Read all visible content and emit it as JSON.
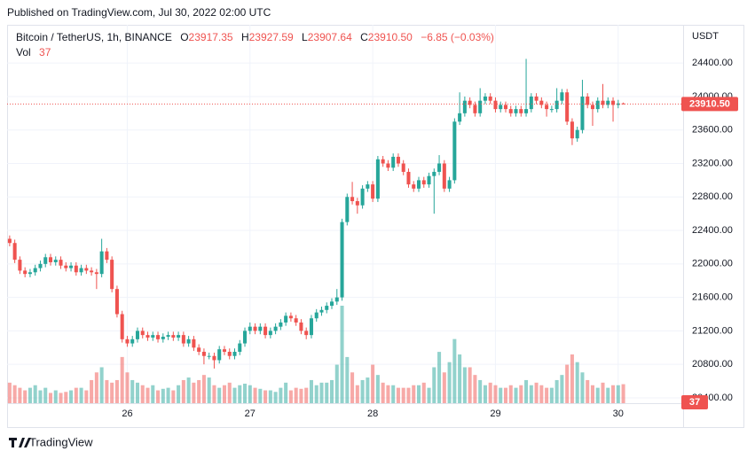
{
  "published": "Published on TradingView.com, Jul 30, 2022 02:00 UTC",
  "brand": "TradingView",
  "chart_data": {
    "type": "candlestick",
    "title": "Bitcoin / TetherUS, 1h, BINANCE",
    "currency": "USDT",
    "ohlc_letters": [
      "O",
      "H",
      "L",
      "C"
    ],
    "last_close_label": "23910.50",
    "change_label": "−6.85 (−0.03%)",
    "volume_name": "Vol",
    "up_color": "#26a69a",
    "down_color": "#ef5350",
    "grid": true,
    "xlim": [
      -0.5,
      131.7
    ],
    "xticks": [
      {
        "value": 23,
        "label": "26"
      },
      {
        "value": 47,
        "label": "27"
      },
      {
        "value": 71,
        "label": "28"
      },
      {
        "value": 95,
        "label": "29"
      },
      {
        "value": 119,
        "label": "30"
      }
    ],
    "ylim": [
      20336,
      24857
    ],
    "yticks": [
      {
        "value": 20400,
        "label": "20400.00"
      },
      {
        "value": 20800,
        "label": "20800.00"
      },
      {
        "value": 21200,
        "label": "21200.00"
      },
      {
        "value": 21600,
        "label": "21600.00"
      },
      {
        "value": 22000,
        "label": "22000.00"
      },
      {
        "value": 22400,
        "label": "22400.00"
      },
      {
        "value": 22800,
        "label": "22800.00"
      },
      {
        "value": 23200,
        "label": "23200.00"
      },
      {
        "value": 23600,
        "label": "23600.00"
      },
      {
        "value": 24000,
        "label": "24000.00"
      },
      {
        "value": 24400,
        "label": "24400.00"
      }
    ],
    "open": [
      22300,
      22250,
      22050,
      21920,
      21880,
      21900,
      21950,
      22000,
      22080,
      22020,
      22050,
      21980,
      21950,
      21980,
      21900,
      21950,
      21920,
      21900,
      21880,
      22150,
      22050,
      21700,
      21400,
      21100,
      21050,
      21100,
      21200,
      21150,
      21120,
      21150,
      21100,
      21130,
      21150,
      21120,
      21150,
      21050,
      21100,
      21000,
      20950,
      20900,
      20900,
      20850,
      20980,
      20950,
      20900,
      20950,
      21050,
      21200,
      21250,
      21200,
      21250,
      21150,
      21200,
      21250,
      21300,
      21380,
      21350,
      21300,
      21200,
      21150,
      21350,
      21420,
      21450,
      21500,
      21550,
      21600,
      22500,
      22800,
      22750,
      22700,
      22900,
      22950,
      22780,
      23250,
      23200,
      23150,
      23280,
      23200,
      23100,
      22950,
      22900,
      23000,
      22950,
      23050,
      23100,
      23200,
      22900,
      23000,
      23700,
      23800,
      23950,
      23900,
      23800,
      23950,
      24000,
      23950,
      23850,
      23900,
      23850,
      23800,
      23850,
      23800,
      23850,
      24000,
      23950,
      23900,
      23850,
      23850,
      23950,
      24050,
      23700,
      23500,
      23600,
      24000,
      23900,
      23850,
      23950,
      23900,
      23950,
      23900,
      23917.35
    ],
    "high": [
      22340,
      22290,
      22090,
      21960,
      21940,
      21990,
      22040,
      22120,
      22120,
      22090,
      22090,
      22020,
      22020,
      22020,
      21990,
      21990,
      21960,
      21940,
      22300,
      22190,
      22090,
      21740,
      21440,
      21140,
      21140,
      21240,
      21240,
      21190,
      21190,
      21190,
      21170,
      21190,
      21190,
      21190,
      21190,
      21140,
      21140,
      21040,
      20990,
      20940,
      20940,
      21020,
      21020,
      20990,
      20990,
      21090,
      21240,
      21300,
      21290,
      21290,
      21290,
      21240,
      21290,
      21340,
      21420,
      21420,
      21390,
      21340,
      21240,
      21390,
      21460,
      21490,
      21540,
      21590,
      21700,
      22540,
      22840,
      22980,
      22790,
      22940,
      22990,
      22990,
      23290,
      23290,
      23240,
      23320,
      23320,
      23240,
      23140,
      22990,
      23040,
      23040,
      23090,
      23140,
      23300,
      23240,
      23040,
      23740,
      24050,
      24000,
      23990,
      23940,
      24100,
      24040,
      24040,
      23990,
      23940,
      23940,
      23890,
      23890,
      23890,
      24450,
      24040,
      24040,
      23990,
      23940,
      23890,
      24100,
      24090,
      24090,
      23740,
      23640,
      24200,
      24040,
      23940,
      23990,
      24150,
      23990,
      23990,
      23960,
      23927.59
    ],
    "low": [
      22210,
      22010,
      21880,
      21840,
      21840,
      21860,
      21910,
      21960,
      21980,
      21980,
      21940,
      21910,
      21910,
      21860,
      21860,
      21880,
      21860,
      21700,
      21840,
      22010,
      21660,
      21360,
      21060,
      21010,
      21010,
      21060,
      21110,
      21080,
      21080,
      21060,
      21060,
      21090,
      21080,
      21080,
      21010,
      21010,
      20960,
      20910,
      20800,
      20860,
      20750,
      20810,
      20910,
      20860,
      20860,
      20910,
      21010,
      21160,
      21160,
      21160,
      21110,
      21110,
      21160,
      21210,
      21260,
      21310,
      21260,
      21160,
      21100,
      21110,
      21310,
      21380,
      21410,
      21460,
      21510,
      21560,
      22460,
      22710,
      22600,
      22660,
      22860,
      22740,
      22740,
      23160,
      23110,
      23110,
      23160,
      23060,
      22910,
      22860,
      22860,
      22910,
      22910,
      22600,
      23060,
      22860,
      22860,
      22960,
      23660,
      23760,
      23860,
      23760,
      23760,
      23910,
      23910,
      23810,
      23810,
      23810,
      23760,
      23760,
      23760,
      23760,
      23810,
      23910,
      23860,
      23760,
      23810,
      23810,
      23910,
      23660,
      23420,
      23460,
      23560,
      23860,
      23650,
      23810,
      23860,
      23860,
      23700,
      23860,
      23907.64
    ],
    "close": [
      22250,
      22050,
      21920,
      21880,
      21900,
      21950,
      22000,
      22080,
      22020,
      22050,
      21980,
      21950,
      21980,
      21900,
      21950,
      21920,
      21900,
      21880,
      22150,
      22050,
      21700,
      21400,
      21100,
      21050,
      21100,
      21200,
      21150,
      21120,
      21150,
      21100,
      21130,
      21150,
      21120,
      21150,
      21050,
      21100,
      21000,
      20950,
      20900,
      20900,
      20850,
      20980,
      20950,
      20900,
      20950,
      21050,
      21200,
      21250,
      21200,
      21250,
      21150,
      21200,
      21250,
      21300,
      21380,
      21350,
      21300,
      21200,
      21150,
      21350,
      21420,
      21450,
      21500,
      21550,
      21600,
      22500,
      22800,
      22750,
      22700,
      22900,
      22950,
      22780,
      23250,
      23200,
      23150,
      23280,
      23200,
      23100,
      22950,
      22900,
      23000,
      22950,
      23050,
      23100,
      23200,
      22900,
      23000,
      23700,
      23800,
      23950,
      23900,
      23800,
      23950,
      24000,
      23950,
      23850,
      23900,
      23850,
      23800,
      23850,
      23800,
      23850,
      24000,
      23950,
      23900,
      23850,
      23850,
      23950,
      24050,
      23700,
      23500,
      23600,
      24000,
      23900,
      23850,
      23950,
      23900,
      23950,
      23900,
      23917.35,
      23910.5
    ],
    "volume": [
      40,
      35,
      30,
      25,
      30,
      35,
      25,
      30,
      20,
      25,
      20,
      22,
      25,
      30,
      30,
      25,
      45,
      60,
      70,
      45,
      40,
      45,
      90,
      60,
      45,
      40,
      35,
      30,
      35,
      25,
      28,
      30,
      25,
      35,
      45,
      50,
      40,
      45,
      55,
      50,
      35,
      30,
      35,
      40,
      30,
      35,
      38,
      35,
      30,
      28,
      25,
      25,
      22,
      30,
      40,
      25,
      30,
      28,
      30,
      45,
      35,
      40,
      40,
      45,
      75,
      190,
      90,
      60,
      35,
      45,
      50,
      75,
      55,
      40,
      35,
      35,
      30,
      30,
      30,
      35,
      35,
      40,
      30,
      70,
      100,
      60,
      80,
      125,
      95,
      70,
      70,
      55,
      45,
      35,
      40,
      35,
      30,
      30,
      35,
      30,
      35,
      45,
      35,
      40,
      35,
      30,
      30,
      45,
      55,
      75,
      95,
      80,
      60,
      45,
      35,
      30,
      40,
      30,
      35,
      35,
      37
    ]
  }
}
